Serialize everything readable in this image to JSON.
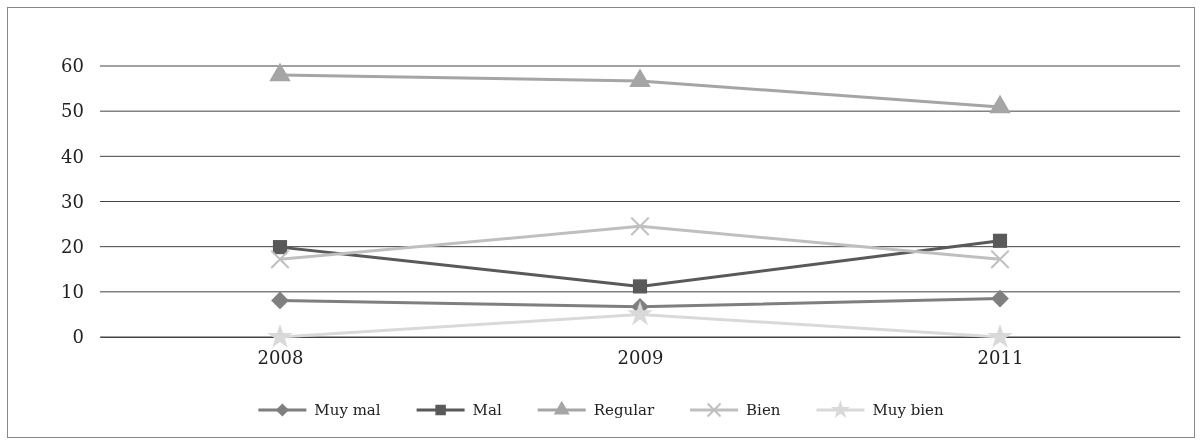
{
  "chart_data": {
    "type": "line",
    "categories": [
      "2008",
      "2009",
      "2011"
    ],
    "series": [
      {
        "name": "Muy mal",
        "color": "#7f7f7f",
        "marker": "diamond",
        "values": [
          8.1,
          6.7,
          8.5
        ]
      },
      {
        "name": "Mal",
        "color": "#595959",
        "marker": "square",
        "values": [
          19.9,
          11.2,
          21.3
        ]
      },
      {
        "name": "Regular",
        "color": "#a5a5a5",
        "marker": "triangle",
        "values": [
          58,
          56.7,
          50.9
        ]
      },
      {
        "name": "Bien",
        "color": "#bfbfbf",
        "marker": "cross",
        "values": [
          17.2,
          24.5,
          17.2
        ]
      },
      {
        "name": "Muy bien",
        "color": "#d9d9d9",
        "marker": "star",
        "values": [
          0,
          5,
          0
        ]
      }
    ],
    "ylim": [
      0,
      60
    ],
    "yticks": [
      0,
      10,
      20,
      30,
      40,
      50,
      60
    ],
    "grid": "y",
    "legend": "bottom"
  }
}
